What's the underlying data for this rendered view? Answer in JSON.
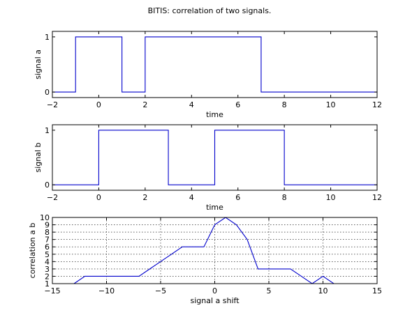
{
  "figure": {
    "title": "BITIS: correlation of two signals."
  },
  "chart_data": [
    {
      "type": "line",
      "step": true,
      "xlabel": "time",
      "ylabel": "signal a",
      "xlim": [
        -2,
        12
      ],
      "ylim": [
        -0.1,
        1.1
      ],
      "xticks": [
        -2,
        0,
        2,
        4,
        6,
        8,
        10,
        12
      ],
      "yticks": [
        0,
        1
      ],
      "grid": false,
      "series": [
        {
          "color": "#0000cc",
          "x": [
            -2,
            -1,
            -1,
            1,
            1,
            2,
            2,
            7,
            7,
            12
          ],
          "y": [
            0,
            0,
            1,
            1,
            0,
            0,
            1,
            1,
            0,
            0
          ]
        }
      ]
    },
    {
      "type": "line",
      "step": true,
      "xlabel": "time",
      "ylabel": "signal b",
      "xlim": [
        -2,
        12
      ],
      "ylim": [
        -0.1,
        1.1
      ],
      "xticks": [
        -2,
        0,
        2,
        4,
        6,
        8,
        10,
        12
      ],
      "yticks": [
        0,
        1
      ],
      "grid": false,
      "series": [
        {
          "color": "#0000cc",
          "x": [
            -2,
            0,
            0,
            3,
            3,
            5,
            5,
            8,
            8,
            12
          ],
          "y": [
            0,
            0,
            1,
            1,
            0,
            0,
            1,
            1,
            0,
            0
          ]
        }
      ]
    },
    {
      "type": "line",
      "step": false,
      "xlabel": "signal a shift",
      "ylabel": "correlation a b",
      "xlim": [
        -15,
        15
      ],
      "ylim": [
        1,
        10
      ],
      "xticks": [
        -15,
        -10,
        -5,
        0,
        5,
        10,
        15
      ],
      "yticks": [
        1,
        2,
        3,
        4,
        5,
        6,
        7,
        8,
        9,
        10
      ],
      "grid": true,
      "series": [
        {
          "color": "#0000cc",
          "x": [
            -13,
            -12,
            -11,
            -10,
            -9,
            -8,
            -7,
            -6,
            -5,
            -4,
            -3,
            -2,
            -1,
            0,
            1,
            2,
            3,
            4,
            5,
            6,
            7,
            8,
            9,
            10,
            11,
            12,
            13
          ],
          "y": [
            1,
            2,
            2,
            2,
            2,
            2,
            2,
            3,
            4,
            5,
            6,
            6,
            6,
            9,
            10,
            9,
            7,
            3,
            3,
            3,
            3,
            2,
            1,
            2,
            1,
            1,
            1
          ]
        }
      ]
    }
  ]
}
